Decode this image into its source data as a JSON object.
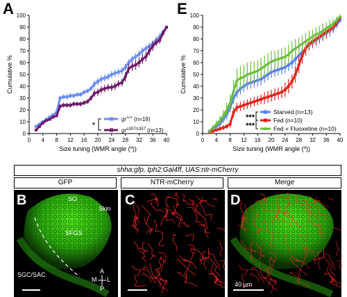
{
  "panels": {
    "A": "A",
    "E": "E",
    "B": "B",
    "C": "C",
    "D": "D"
  },
  "chart_data": [
    {
      "type": "line",
      "panel": "A",
      "ylabel": "Cumulative %",
      "xlabel": "Size tuning (WMR angle (º))",
      "xlim": [
        0,
        40
      ],
      "ylim": [
        0,
        100
      ],
      "xticks": [
        0,
        4,
        8,
        12,
        16,
        20,
        24,
        28,
        32,
        36,
        40
      ],
      "yticks": [
        0,
        10,
        20,
        30,
        40,
        50,
        60,
        70,
        80,
        90,
        100
      ],
      "legend_position": "bottom-right",
      "significance": "*",
      "series": [
        {
          "name": "gr+/+ (n=19)",
          "label_italic": "gr",
          "label_sup": "+/+",
          "label_rest": " (n=19)",
          "color": "#6b8cf0",
          "x": [
            2,
            3,
            4,
            5,
            6,
            7,
            8,
            9,
            10,
            11,
            12,
            13,
            14,
            15,
            16,
            17,
            18,
            19,
            20,
            21,
            22,
            23,
            24,
            25,
            26,
            27,
            28,
            29,
            30,
            31,
            32,
            33,
            34,
            35,
            36,
            37,
            38,
            39,
            40
          ],
          "y": [
            6,
            8,
            10,
            12,
            14,
            16,
            18,
            30,
            31,
            31,
            32,
            32,
            33,
            33,
            35,
            36,
            38,
            42,
            44,
            46,
            47,
            48,
            50,
            51,
            52,
            53,
            56,
            60,
            63,
            65,
            67,
            70,
            72,
            74,
            76,
            79,
            82,
            86,
            90
          ],
          "err": [
            1,
            1,
            1,
            1,
            1,
            1,
            1,
            2,
            2,
            2,
            2,
            2,
            2,
            2,
            2,
            2,
            2,
            3,
            3,
            3,
            3,
            3,
            3,
            3,
            3,
            3,
            3,
            3,
            3,
            3,
            3,
            3,
            3,
            3,
            3,
            3,
            3,
            2,
            1
          ]
        },
        {
          "name": "gr s357/s357 (n=13)",
          "label_italic": "gr",
          "label_sup": "s357/s357",
          "label_rest": " (n=13)",
          "color": "#6d1a6b",
          "x": [
            2,
            3,
            4,
            5,
            6,
            7,
            8,
            9,
            10,
            11,
            12,
            13,
            14,
            15,
            16,
            17,
            18,
            19,
            20,
            21,
            22,
            23,
            24,
            25,
            26,
            27,
            28,
            29,
            30,
            31,
            32,
            33,
            34,
            35,
            36,
            37,
            38,
            39,
            40
          ],
          "y": [
            3,
            6,
            9,
            11,
            12,
            14,
            15,
            23,
            24,
            24,
            24,
            25,
            25,
            25,
            26,
            27,
            30,
            34,
            35,
            37,
            38,
            39,
            39,
            40,
            42,
            43,
            48,
            55,
            57,
            58,
            60,
            63,
            65,
            70,
            74,
            77,
            79,
            85,
            90
          ],
          "err": [
            1,
            1,
            1,
            1,
            1,
            1,
            1,
            2,
            2,
            2,
            2,
            2,
            2,
            2,
            2,
            2,
            2,
            3,
            3,
            3,
            3,
            3,
            3,
            3,
            3,
            3,
            4,
            4,
            4,
            4,
            4,
            4,
            4,
            4,
            4,
            3,
            3,
            2,
            1
          ]
        }
      ]
    },
    {
      "type": "line",
      "panel": "E",
      "ylabel": "Cumulative %",
      "xlabel": "Size tuning (WMR angle (º))",
      "xlim": [
        0,
        40
      ],
      "ylim": [
        0,
        100
      ],
      "xticks": [
        0,
        4,
        8,
        12,
        16,
        20,
        24,
        28,
        32,
        36,
        40
      ],
      "yticks": [
        0,
        10,
        20,
        30,
        40,
        50,
        60,
        70,
        80,
        90,
        100
      ],
      "legend_position": "bottom-right",
      "significance": [
        "***",
        "***"
      ],
      "series": [
        {
          "name": "Starved (n=13)",
          "color": "#5b7ef5",
          "marker": "square",
          "x": [
            2,
            3,
            4,
            5,
            6,
            7,
            8,
            9,
            10,
            11,
            12,
            13,
            14,
            15,
            16,
            17,
            18,
            19,
            20,
            21,
            22,
            23,
            24,
            25,
            26,
            27,
            28,
            29,
            30,
            31,
            32,
            33,
            34,
            35,
            36,
            37,
            38,
            39,
            40
          ],
          "y": [
            2,
            4,
            6,
            8,
            12,
            16,
            22,
            30,
            35,
            38,
            40,
            42,
            43,
            44,
            45,
            46,
            48,
            50,
            52,
            53,
            54,
            55,
            56,
            58,
            60,
            63,
            66,
            69,
            72,
            75,
            77,
            79,
            81,
            83,
            85,
            87,
            89,
            92,
            96
          ],
          "err": [
            1,
            2,
            2,
            3,
            3,
            4,
            4,
            5,
            5,
            5,
            5,
            5,
            5,
            5,
            5,
            5,
            5,
            5,
            5,
            5,
            5,
            5,
            5,
            5,
            5,
            5,
            5,
            5,
            5,
            5,
            5,
            5,
            5,
            5,
            5,
            5,
            4,
            3,
            2
          ]
        },
        {
          "name": "Fed (n=10)",
          "color": "#e0241b",
          "marker": "square",
          "x": [
            2,
            3,
            4,
            5,
            6,
            7,
            8,
            9,
            10,
            11,
            12,
            13,
            14,
            15,
            16,
            17,
            18,
            19,
            20,
            21,
            22,
            23,
            24,
            25,
            26,
            27,
            28,
            29,
            30,
            31,
            32,
            33,
            34,
            35,
            36,
            37,
            38,
            39,
            40
          ],
          "y": [
            1,
            2,
            3,
            4,
            5,
            6,
            8,
            18,
            22,
            23,
            24,
            25,
            26,
            27,
            28,
            29,
            30,
            31,
            32,
            33,
            34,
            35,
            37,
            40,
            44,
            50,
            58,
            66,
            72,
            76,
            78,
            80,
            82,
            84,
            86,
            88,
            90,
            94,
            98
          ],
          "err": [
            1,
            1,
            1,
            2,
            2,
            2,
            3,
            4,
            4,
            4,
            4,
            4,
            4,
            4,
            4,
            4,
            5,
            5,
            5,
            5,
            5,
            5,
            6,
            6,
            6,
            7,
            7,
            7,
            6,
            6,
            5,
            5,
            5,
            5,
            5,
            4,
            4,
            3,
            1
          ]
        },
        {
          "name": "Fed + Fluoxetine (n=10)",
          "color": "#6cbf3f",
          "marker": "triangle",
          "x": [
            2,
            3,
            4,
            5,
            6,
            7,
            8,
            9,
            10,
            11,
            12,
            13,
            14,
            15,
            16,
            17,
            18,
            19,
            20,
            21,
            22,
            23,
            24,
            25,
            26,
            27,
            28,
            29,
            30,
            31,
            32,
            33,
            34,
            35,
            36,
            37,
            38,
            39,
            40
          ],
          "y": [
            2,
            5,
            8,
            11,
            15,
            20,
            26,
            36,
            45,
            47,
            48,
            50,
            51,
            52,
            53,
            55,
            57,
            59,
            61,
            62,
            63,
            64,
            65,
            67,
            70,
            72,
            74,
            76,
            78,
            80,
            82,
            84,
            85,
            87,
            89,
            91,
            93,
            96,
            99
          ],
          "err": [
            1,
            2,
            3,
            4,
            5,
            6,
            7,
            9,
            10,
            10,
            10,
            10,
            10,
            9,
            9,
            9,
            9,
            9,
            9,
            8,
            8,
            8,
            8,
            8,
            8,
            8,
            7,
            7,
            7,
            7,
            6,
            6,
            6,
            6,
            5,
            5,
            4,
            3,
            2
          ]
        }
      ]
    }
  ],
  "microscopy": {
    "header": "shha:gfp, tph2:Gal4ff, UAS:ntr-mCherry",
    "columns": [
      {
        "label": "GFP",
        "color": "#3ed012"
      },
      {
        "label": "NTR-mCherry",
        "color": "#ff2020"
      },
      {
        "label": "Merge",
        "color": "mixed"
      }
    ],
    "labels": {
      "SO": "SO",
      "Skin": "Skin",
      "SFGS": "SFGS",
      "SGC_SAC": "SGC/SAC",
      "axis_A": "A",
      "axis_P": "P",
      "axis_M": "M",
      "axis_L": "L",
      "scale": "40 µm"
    }
  }
}
